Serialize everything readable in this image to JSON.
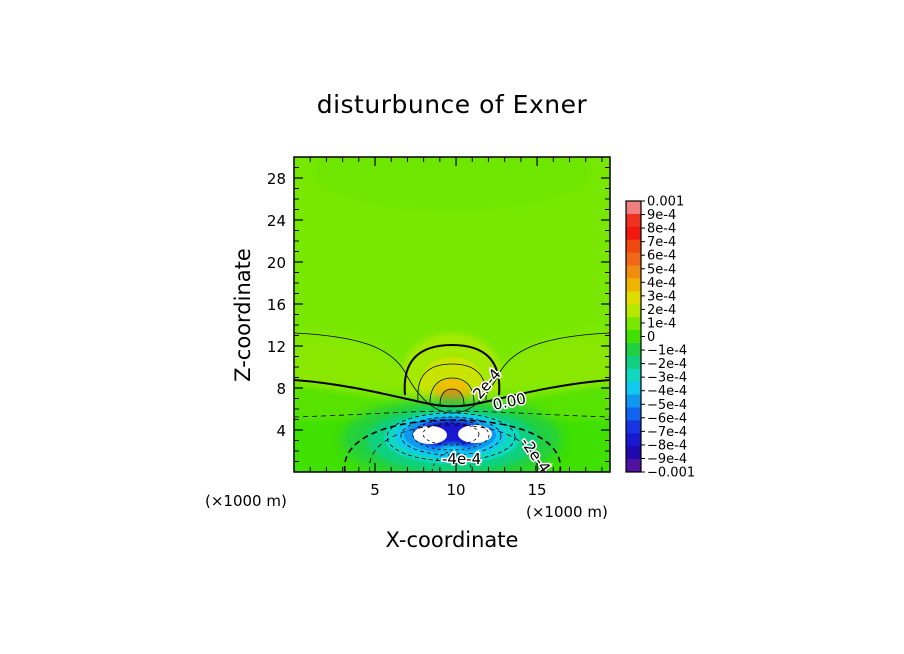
{
  "chart_data": {
    "type": "heatmap",
    "title": "disturbunce of Exner",
    "xlabel": "X-coordinate",
    "ylabel": "Z-coordinate",
    "x_unit_left": "(×1000 m)",
    "x_unit_right": "(×1000 m)",
    "xlim": [
      0,
      19.5
    ],
    "ylim": [
      0,
      30
    ],
    "x_ticks": [
      5,
      10,
      15
    ],
    "y_ticks": [
      4,
      8,
      12,
      16,
      20,
      24,
      28
    ],
    "colorbar": {
      "labels": [
        "0.001",
        "9e-4",
        "8e-4",
        "7e-4",
        "6e-4",
        "5e-4",
        "4e-4",
        "3e-4",
        "2e-4",
        "1e-4",
        "0",
        "−1e-4",
        "−2e-4",
        "−3e-4",
        "−4e-4",
        "−5e-4",
        "−6e-4",
        "−7e-4",
        "−8e-4",
        "−9e-4",
        "−0.001"
      ],
      "colors": [
        "#f08080",
        "#f03020",
        "#f01810",
        "#f04810",
        "#f06818",
        "#f08c10",
        "#f0b400",
        "#e0dc00",
        "#b8e800",
        "#78e800",
        "#40e000",
        "#20d040",
        "#10d080",
        "#10d8c0",
        "#10c8f0",
        "#1098f0",
        "#1064f0",
        "#1834e0",
        "#1818d0",
        "#2008b0",
        "#5010a0"
      ]
    },
    "contour_labels": [
      "2e-4",
      "0.00",
      "-2e-4",
      "-4e-4"
    ],
    "background_value": "1e-4"
  }
}
